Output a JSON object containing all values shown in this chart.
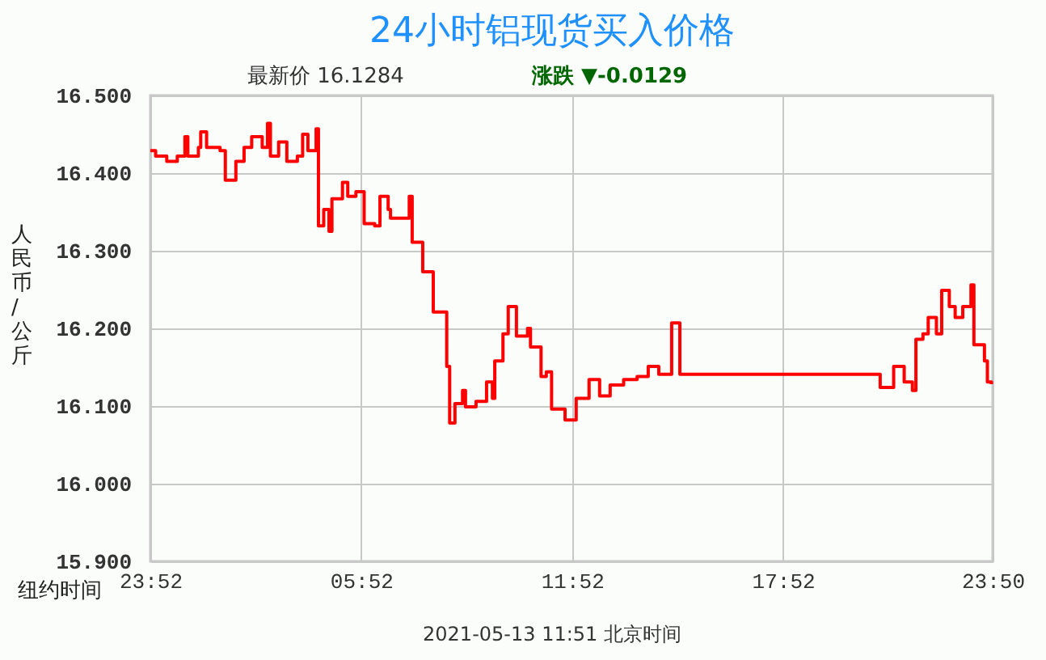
{
  "chart_data": {
    "type": "step",
    "title": "24小时铝现货买入价格",
    "subtitle": "最新价  16.1284",
    "ylabel": "人民币/公斤",
    "xlabel": "纽约时间",
    "annotations": [
      "涨跌 ▼-0.0129",
      "2021-05-13 11:51   北京时间"
    ],
    "x": [
      "2021-05-11T23:52",
      "2021-05-12T00:01",
      "2021-05-12T00:20",
      "2021-05-12T00:38",
      "2021-05-12T00:51",
      "2021-05-12T00:56",
      "2021-05-12T01:14",
      "2021-05-12T01:18",
      "2021-05-12T01:28",
      "2021-05-12T01:51",
      "2021-05-12T02:00",
      "2021-05-12T02:18",
      "2021-05-12T02:32",
      "2021-05-12T02:45",
      "2021-05-12T03:03",
      "2021-05-12T03:12",
      "2021-05-12T03:17",
      "2021-05-12T03:31",
      "2021-05-12T03:45",
      "2021-05-12T04:03",
      "2021-05-12T04:12",
      "2021-05-12T04:21",
      "2021-05-12T04:35",
      "2021-05-12T04:39",
      "2021-05-12T04:48",
      "2021-05-12T04:57",
      "2021-05-12T05:02",
      "2021-05-12T05:20",
      "2021-05-12T05:29",
      "2021-05-12T05:43",
      "2021-05-12T05:57",
      "2021-05-12T06:15",
      "2021-05-12T06:24",
      "2021-05-12T06:38",
      "2021-05-12T06:42",
      "2021-05-12T07:14",
      "2021-05-12T07:19",
      "2021-05-12T07:37",
      "2021-05-12T07:55",
      "2021-05-12T08:18",
      "2021-05-12T08:23",
      "2021-05-12T08:32",
      "2021-05-12T08:45",
      "2021-05-12T08:50",
      "2021-05-12T09:08",
      "2021-05-12T09:26",
      "2021-05-12T09:36",
      "2021-05-12T09:40",
      "2021-05-12T09:54",
      "2021-05-12T10:03",
      "2021-05-12T10:17",
      "2021-05-12T10:23",
      "2021-05-12T10:36",
      "2021-05-12T10:41",
      "2021-05-12T10:59",
      "2021-05-12T11:08",
      "2021-05-12T11:17",
      "2021-05-12T11:40",
      "2021-05-12T11:59",
      "2021-05-12T12:21",
      "2021-05-12T12:39",
      "2021-05-12T12:57",
      "2021-05-12T13:20",
      "2021-05-12T13:43",
      "2021-05-12T14:02",
      "2021-05-12T14:20",
      "2021-05-12T14:42",
      "2021-05-12T14:56",
      "2021-05-12T20:20",
      "2021-05-12T20:38",
      "2021-05-12T21:01",
      "2021-05-12T21:19",
      "2021-05-12T21:33",
      "2021-05-12T21:39",
      "2021-05-12T21:51",
      "2021-05-12T22:00",
      "2021-05-12T22:14",
      "2021-05-12T22:23",
      "2021-05-12T22:36",
      "2021-05-12T22:46",
      "2021-05-12T22:59",
      "2021-05-12T23:13",
      "2021-05-12T23:18",
      "2021-05-12T23:36",
      "2021-05-12T23:41",
      "2021-05-12T23:48"
    ],
    "series": [
      {
        "color": "#ff0000",
        "values": [
          16.429,
          16.422,
          16.415,
          16.422,
          16.447,
          16.422,
          16.433,
          16.453,
          16.433,
          16.429,
          16.391,
          16.415,
          16.433,
          16.447,
          16.433,
          16.464,
          16.422,
          16.44,
          16.415,
          16.422,
          16.45,
          16.429,
          16.457,
          16.332,
          16.353,
          16.325,
          16.367,
          16.388,
          16.37,
          16.376,
          16.335,
          16.332,
          16.37,
          16.353,
          16.342,
          16.37,
          16.311,
          16.273,
          16.221,
          16.151,
          16.078,
          16.103,
          16.12,
          16.099,
          16.106,
          16.131,
          16.11,
          16.158,
          16.193,
          16.228,
          16.19,
          16.19,
          16.2,
          16.176,
          16.138,
          16.144,
          16.096,
          16.082,
          16.11,
          16.134,
          16.113,
          16.127,
          16.134,
          16.138,
          16.151,
          16.141,
          16.207,
          16.141,
          16.141,
          16.124,
          16.151,
          16.131,
          16.12,
          16.186,
          16.193,
          16.214,
          16.193,
          16.249,
          16.228,
          16.214,
          16.228,
          16.256,
          16.179,
          16.158,
          16.131,
          16.128
        ]
      }
    ],
    "xlim": [
      "2021-05-11T23:52",
      "2021-05-12T23:50"
    ],
    "xticks": [
      {
        "value": "2021-05-11T23:52",
        "label": "23:52"
      },
      {
        "value": "2021-05-12T05:52",
        "label": "05:52"
      },
      {
        "value": "2021-05-12T11:52",
        "label": "11:52"
      },
      {
        "value": "2021-05-12T17:52",
        "label": "17:52"
      },
      {
        "value": "2021-05-12T23:50",
        "label": "23:50"
      }
    ],
    "ylim": [
      15.9,
      16.5
    ],
    "yticks": [
      {
        "value": 15.9,
        "label": "15.900"
      },
      {
        "value": 16.0,
        "label": "16.000"
      },
      {
        "value": 16.1,
        "label": "16.100"
      },
      {
        "value": 16.2,
        "label": "16.200"
      },
      {
        "value": 16.3,
        "label": "16.300"
      },
      {
        "value": 16.4,
        "label": "16.400"
      },
      {
        "value": 16.5,
        "label": "16.500"
      }
    ],
    "grid": true,
    "marker": "none",
    "line_style": "solid"
  }
}
